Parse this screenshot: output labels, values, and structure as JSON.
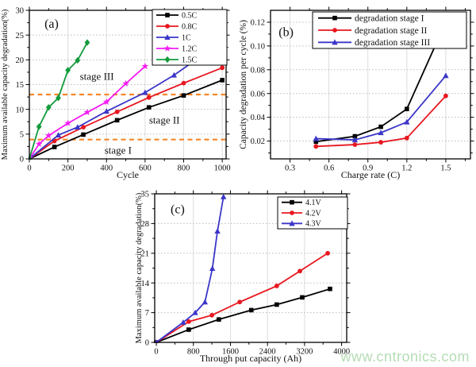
{
  "page": {
    "background": "#ffffff",
    "watermark": {
      "text": "www.cntronics.com",
      "color": "#b5dcb5"
    }
  },
  "chart_data": [
    {
      "id": "a",
      "type": "line",
      "panel_label": "(a)",
      "xlabel": "Cycle",
      "ylabel": "Maximum available capacity degradation(%)",
      "xlim": [
        0,
        1020
      ],
      "ylim": [
        0,
        30
      ],
      "xticks": [
        0,
        200,
        400,
        600,
        800,
        1000
      ],
      "xtick_labels": [
        "0",
        "200",
        "400",
        "600",
        "800",
        "1000"
      ],
      "yticks": [
        0,
        5,
        10,
        15,
        20,
        25,
        30
      ],
      "ytick_labels": [
        "0",
        "5",
        "10",
        "15",
        "20",
        "25",
        "30"
      ],
      "grid": true,
      "legend_position": "top-right-inside",
      "series": [
        {
          "name": "0.5C",
          "color": "#000000",
          "marker": "square",
          "x": [
            0,
            130,
            280,
            455,
            620,
            800,
            1000
          ],
          "y": [
            0,
            2.4,
            4.9,
            7.8,
            10.4,
            12.8,
            15.9
          ]
        },
        {
          "name": "0.8C",
          "color": "#e8171f",
          "marker": "circle",
          "x": [
            0,
            130,
            280,
            455,
            620,
            800,
            1000
          ],
          "y": [
            0,
            3.6,
            6.4,
            9.5,
            12.4,
            15.3,
            18.4
          ]
        },
        {
          "name": "1C",
          "color": "#3b36c8",
          "marker": "triangle",
          "x": [
            0,
            150,
            250,
            400,
            600,
            750,
            900
          ],
          "y": [
            0,
            4.8,
            6.4,
            9.6,
            13.4,
            16.9,
            21.0
          ]
        },
        {
          "name": "1.2C",
          "color": "#f41cf4",
          "marker": "star",
          "x": [
            0,
            50,
            100,
            200,
            300,
            400,
            500,
            600
          ],
          "y": [
            0,
            3.0,
            4.7,
            7.2,
            9.4,
            11.5,
            15.2,
            18.7
          ]
        },
        {
          "name": "1.5C",
          "color": "#129b3c",
          "marker": "diamond",
          "x": [
            0,
            50,
            100,
            150,
            200,
            250,
            300
          ],
          "y": [
            0,
            6.5,
            10.4,
            12.3,
            17.9,
            19.9,
            23.5
          ]
        }
      ],
      "ref_lines": [
        {
          "y": 3.9,
          "color": "#f5872b",
          "style": "dashed"
        },
        {
          "y": 13.0,
          "color": "#f5872b",
          "style": "dashed"
        }
      ],
      "annotations": [
        {
          "text": "(a)",
          "x": 115,
          "y": 27.4,
          "size": 16
        },
        {
          "text": "stage III",
          "x": 350,
          "y": 16.7,
          "size": 13
        },
        {
          "text": "stage II",
          "x": 700,
          "y": 7.9,
          "size": 13
        },
        {
          "text": "stage I",
          "x": 460,
          "y": 1.8,
          "size": 13
        }
      ]
    },
    {
      "id": "b",
      "type": "line",
      "panel_label": "(b)",
      "xlabel": "Charge rate (C)",
      "ylabel": "Capacity degradation per cycle (%)",
      "xlim": [
        0.15,
        1.69
      ],
      "ylim": [
        0.005,
        0.13
      ],
      "xticks": [
        0.3,
        0.6,
        0.9,
        1.2,
        1.5
      ],
      "xtick_labels": [
        "0.3",
        "0.6",
        "0.9",
        "1.2",
        "1.5"
      ],
      "yticks": [
        0.02,
        0.04,
        0.06,
        0.08,
        0.1,
        0.12
      ],
      "ytick_labels": [
        "0.02",
        "0.04",
        "0.06",
        "0.08",
        "0.10",
        "0.12"
      ],
      "grid": true,
      "legend_position": "top-right-inside",
      "series": [
        {
          "name": "degradation stage I",
          "color": "#000000",
          "marker": "square",
          "x": [
            0.5,
            0.8,
            1.0,
            1.2,
            1.5
          ],
          "y": [
            0.0195,
            0.024,
            0.032,
            0.047,
            0.12
          ]
        },
        {
          "name": "degradation stage II",
          "color": "#e8171f",
          "marker": "circle",
          "x": [
            0.5,
            0.8,
            1.0,
            1.2,
            1.5
          ],
          "y": [
            0.0155,
            0.017,
            0.019,
            0.0225,
            0.058
          ]
        },
        {
          "name": "degradation stage III",
          "color": "#3b36c8",
          "marker": "triangle",
          "x": [
            0.5,
            0.8,
            1.0,
            1.2,
            1.5
          ],
          "y": [
            0.022,
            0.021,
            0.027,
            0.036,
            0.075
          ]
        }
      ],
      "ref_lines": [],
      "annotations": [
        {
          "text": "(b)",
          "x": 0.27,
          "y": 0.112,
          "size": 16
        }
      ]
    },
    {
      "id": "c",
      "type": "line",
      "panel_label": "(c)",
      "xlabel": "Through put capacity (Ah)",
      "ylabel": "Maximum available capacity degradation(%)",
      "xlim": [
        -35,
        4110
      ],
      "ylim": [
        0,
        35
      ],
      "xticks": [
        0,
        800,
        1600,
        2400,
        3200,
        4000
      ],
      "xtick_labels": [
        "0",
        "800",
        "1600",
        "2400",
        "3200",
        "4000"
      ],
      "yticks": [
        0,
        7,
        14,
        21,
        28,
        35
      ],
      "ytick_labels": [
        "0",
        "7",
        "14",
        "21",
        "28",
        "35"
      ],
      "grid": true,
      "legend_position": "top-right-inside",
      "series": [
        {
          "name": "4.1V",
          "color": "#000000",
          "marker": "square",
          "x": [
            0,
            700,
            1350,
            2050,
            2600,
            3150,
            3750
          ],
          "y": [
            0,
            3.0,
            5.4,
            7.6,
            8.9,
            10.6,
            12.6
          ]
        },
        {
          "name": "4.2V",
          "color": "#e8171f",
          "marker": "circle",
          "x": [
            0,
            700,
            1200,
            1800,
            2600,
            3100,
            3700
          ],
          "y": [
            0,
            4.9,
            6.4,
            9.5,
            13.3,
            16.8,
            21.0
          ]
        },
        {
          "name": "4.3V",
          "color": "#3b36c8",
          "marker": "triangle",
          "x": [
            0,
            580,
            840,
            1050,
            1210,
            1320,
            1450
          ],
          "y": [
            0,
            4.7,
            7.0,
            9.5,
            17.4,
            26.2,
            34.3
          ]
        }
      ],
      "ref_lines": [],
      "annotations": [
        {
          "text": "(c)",
          "x": 460,
          "y": 31.5,
          "size": 16
        }
      ]
    }
  ]
}
